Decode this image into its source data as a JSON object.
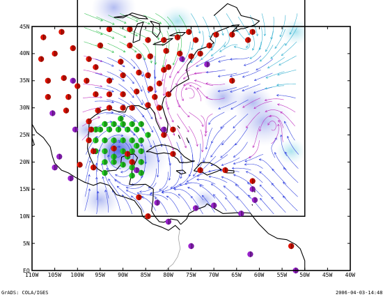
{
  "map": {
    "lon_min": -110,
    "lon_max": -40,
    "lat_min": 0,
    "lat_max": 45,
    "inner_region": {
      "lon_min": -100,
      "lon_max": -50,
      "lat_min": 10,
      "lat_max": 50
    },
    "x_ticks": [
      {
        "value": -110,
        "label": "110W"
      },
      {
        "value": -105,
        "label": "105W"
      },
      {
        "value": -100,
        "label": "100W"
      },
      {
        "value": -95,
        "label": "95W"
      },
      {
        "value": -90,
        "label": "90W"
      },
      {
        "value": -85,
        "label": "85W"
      },
      {
        "value": -80,
        "label": "80W"
      },
      {
        "value": -75,
        "label": "75W"
      },
      {
        "value": -70,
        "label": "70W"
      },
      {
        "value": -65,
        "label": "65W"
      },
      {
        "value": -60,
        "label": "60W"
      },
      {
        "value": -55,
        "label": "55W"
      },
      {
        "value": -50,
        "label": "50W"
      },
      {
        "value": -45,
        "label": "45W"
      },
      {
        "value": -40,
        "label": "40W"
      }
    ],
    "y_ticks": [
      {
        "value": 0,
        "label": "EQ"
      },
      {
        "value": 5,
        "label": "5N"
      },
      {
        "value": 10,
        "label": "10N"
      },
      {
        "value": 15,
        "label": "15N"
      },
      {
        "value": 20,
        "label": "20N"
      },
      {
        "value": 25,
        "label": "25N"
      },
      {
        "value": 30,
        "label": "30N"
      },
      {
        "value": 35,
        "label": "35N"
      },
      {
        "value": 40,
        "label": "40N"
      },
      {
        "value": 45,
        "label": "45N"
      }
    ],
    "colors": {
      "coast": "#000000",
      "outer_coast": "#a0a0a0",
      "stream_blue": "#2233dd",
      "stream_purple": "#bb22bb",
      "stream_green": "#22bb44",
      "stream_cyan": "#22aacc",
      "marker_red": "#dd1100",
      "marker_purple": "#9922cc",
      "marker_green": "#22cc22"
    },
    "red_markers": [
      [
        -107.5,
        43
      ],
      [
        -103.5,
        44
      ],
      [
        -101,
        41
      ],
      [
        -105,
        40
      ],
      [
        -108,
        39
      ],
      [
        -106.5,
        35
      ],
      [
        -103,
        35.5
      ],
      [
        -100,
        34
      ],
      [
        -98,
        35
      ],
      [
        -102,
        32
      ],
      [
        -106.5,
        32
      ],
      [
        -102.5,
        29.5
      ],
      [
        -96,
        32.5
      ],
      [
        -93,
        32.5
      ],
      [
        -90,
        32.5
      ],
      [
        -87,
        33
      ],
      [
        -84,
        33.5
      ],
      [
        -83,
        32
      ],
      [
        -93,
        35
      ],
      [
        -90,
        36
      ],
      [
        -86.5,
        36.5
      ],
      [
        -84.5,
        36
      ],
      [
        -81,
        37
      ],
      [
        -86.5,
        39.5
      ],
      [
        -84,
        39.5
      ],
      [
        -80.5,
        40.5
      ],
      [
        -80,
        37.5
      ],
      [
        -77.5,
        40
      ],
      [
        -75,
        39.5
      ],
      [
        -73,
        40
      ],
      [
        -71,
        41.5
      ],
      [
        -69.5,
        43.5
      ],
      [
        -74,
        42.5
      ],
      [
        -78,
        43
      ],
      [
        -75.5,
        44
      ],
      [
        -66,
        43.5
      ],
      [
        -61.5,
        44
      ],
      [
        -62.5,
        42.5
      ],
      [
        -66,
        35
      ],
      [
        -82,
        34.5
      ],
      [
        -80,
        32.5
      ],
      [
        -82,
        30
      ],
      [
        -84.5,
        30.5
      ],
      [
        -88,
        30
      ],
      [
        -90,
        30
      ],
      [
        -93,
        30
      ],
      [
        -95.5,
        29.5
      ],
      [
        -97.5,
        27.5
      ],
      [
        -97,
        26
      ],
      [
        -97.5,
        24
      ],
      [
        -96.5,
        22
      ],
      [
        -92,
        22.5
      ],
      [
        -89,
        21.5
      ],
      [
        -88,
        20
      ],
      [
        -81,
        25
      ],
      [
        -79,
        26
      ],
      [
        -88.5,
        44.5
      ],
      [
        -93,
        44.5
      ],
      [
        -90.5,
        38.5
      ],
      [
        -97.5,
        39
      ],
      [
        -95,
        41.5
      ],
      [
        -96,
        37.5
      ],
      [
        -88.5,
        41.5
      ],
      [
        -84.5,
        42.5
      ],
      [
        -81,
        42.5
      ],
      [
        -79,
        21.5
      ],
      [
        -73,
        18.5
      ],
      [
        -67.5,
        18.5
      ],
      [
        -61.5,
        16.5
      ],
      [
        -53,
        4.5
      ],
      [
        -99.5,
        19.5
      ],
      [
        -96.5,
        19
      ],
      [
        -86.5,
        13.5
      ],
      [
        -84.5,
        10
      ]
    ],
    "purple_markers": [
      [
        -100.5,
        26
      ],
      [
        -105.5,
        29
      ],
      [
        -101,
        35
      ],
      [
        -104,
        21
      ],
      [
        -105,
        19
      ],
      [
        -101.5,
        17
      ],
      [
        -87,
        18.5
      ],
      [
        -81,
        26
      ],
      [
        -82.5,
        12.5
      ],
      [
        -80,
        9
      ],
      [
        -75,
        4.5
      ],
      [
        -74,
        11.5
      ],
      [
        -70,
        12
      ],
      [
        -64,
        10.5
      ],
      [
        -61.5,
        15
      ],
      [
        -61,
        13
      ],
      [
        -52,
        0
      ],
      [
        -62,
        3
      ],
      [
        -77,
        39
      ],
      [
        -71.5,
        38
      ]
    ],
    "green_markers": [
      [
        -96,
        26
      ],
      [
        -94,
        27
      ],
      [
        -92,
        27
      ],
      [
        -90,
        27
      ],
      [
        -88,
        27
      ],
      [
        -86,
        27
      ],
      [
        -84.5,
        25
      ],
      [
        -86,
        24
      ],
      [
        -88,
        24
      ],
      [
        -90,
        24
      ],
      [
        -92,
        24
      ],
      [
        -94,
        24
      ],
      [
        -96,
        24
      ],
      [
        -95,
        26
      ],
      [
        -93,
        26
      ],
      [
        -91,
        26
      ],
      [
        -89,
        26
      ],
      [
        -87,
        26
      ],
      [
        -86,
        22
      ],
      [
        -88,
        22
      ],
      [
        -90,
        22
      ],
      [
        -92,
        21
      ],
      [
        -94,
        20
      ],
      [
        -90,
        19.5
      ],
      [
        -88,
        19
      ],
      [
        -86,
        20
      ],
      [
        -86,
        18
      ],
      [
        -88,
        17.5
      ],
      [
        -94,
        18
      ],
      [
        -92,
        20
      ],
      [
        -89,
        21
      ],
      [
        -87,
        23
      ],
      [
        -94,
        22
      ],
      [
        -96,
        22
      ],
      [
        -90.5,
        28
      ]
    ]
  },
  "footer": {
    "left": "GrADS: COLA/IGES",
    "right": "2006-04-03-14:48"
  }
}
